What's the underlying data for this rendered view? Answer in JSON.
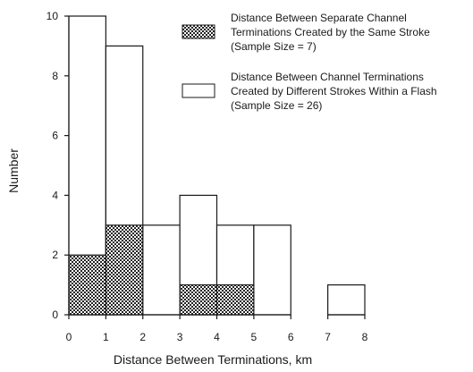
{
  "chart_data": {
    "type": "bar",
    "xlabel": "Distance Between Terminations, km",
    "ylabel": "Number",
    "xlim": [
      0,
      8
    ],
    "ylim": [
      0,
      10
    ],
    "x_ticks": [
      "0",
      "1",
      "2",
      "3",
      "4",
      "5",
      "6",
      "7",
      "8"
    ],
    "y_ticks": [
      "0",
      "2",
      "4",
      "6",
      "8",
      "10"
    ],
    "bin_edges": [
      0,
      1,
      2,
      3,
      4,
      5,
      6,
      7,
      8
    ],
    "grid": false,
    "legend_position": "top-right",
    "series": [
      {
        "legend_lines": [
          "Distance Between Separate Channel",
          "Terminations Created by the Same Stroke",
          "(Sample Size = 7)"
        ],
        "fill": "hatched",
        "values": [
          2,
          3,
          0,
          1,
          1,
          0,
          0,
          0
        ]
      },
      {
        "legend_lines": [
          "Distance Between Channel Terminations",
          "Created by Different Strokes Within a Flash",
          "(Sample Size = 26)"
        ],
        "fill": "white",
        "values": [
          10,
          9,
          3,
          4,
          3,
          3,
          0,
          1
        ]
      }
    ]
  }
}
